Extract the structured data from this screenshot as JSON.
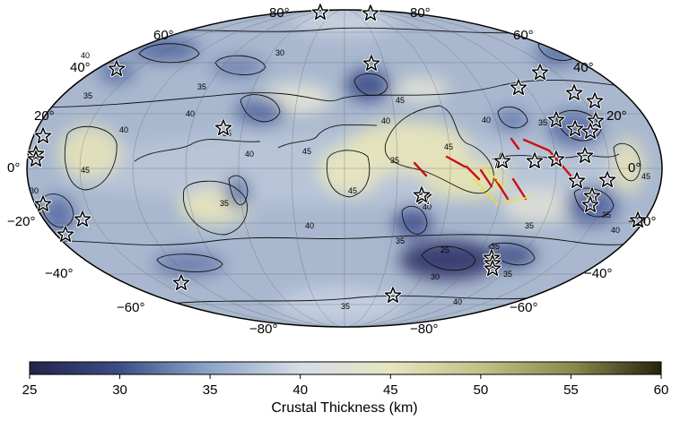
{
  "figure": {
    "projection": "Mollweide (global)",
    "lat_labels_left": [
      "80°",
      "60°",
      "40°",
      "20°",
      "0°",
      "−20°",
      "−40°",
      "−60°",
      "−80°"
    ],
    "lat_labels_right": [
      "80°",
      "60°",
      "40°",
      "20°",
      "0°",
      "−20°",
      "−40°",
      "−60°",
      "−80°"
    ],
    "contour_labels": [
      "40",
      "35",
      "30",
      "35",
      "40",
      "40",
      "35",
      "45",
      "40",
      "45",
      "40",
      "45",
      "35",
      "40",
      "45",
      "40",
      "35",
      "45",
      "40",
      "35",
      "30",
      "25",
      "35",
      "40",
      "35",
      "35",
      "40",
      "35",
      "30",
      "35",
      "35",
      "45"
    ],
    "star_count": 36,
    "fault_colors": {
      "red": "#cc1111",
      "yellow": "#f0e020"
    }
  },
  "colorbar": {
    "title": "Crustal Thickness (km)",
    "ticks": [
      "25",
      "30",
      "35",
      "40",
      "45",
      "50",
      "55",
      "60"
    ],
    "range": [
      25,
      60
    ],
    "colors": [
      "#25234a",
      "#3b4d84",
      "#8ba2c6",
      "#d6dde6",
      "#e6e6c0",
      "#c2c28a",
      "#8a8a4c",
      "#26240f"
    ]
  }
}
